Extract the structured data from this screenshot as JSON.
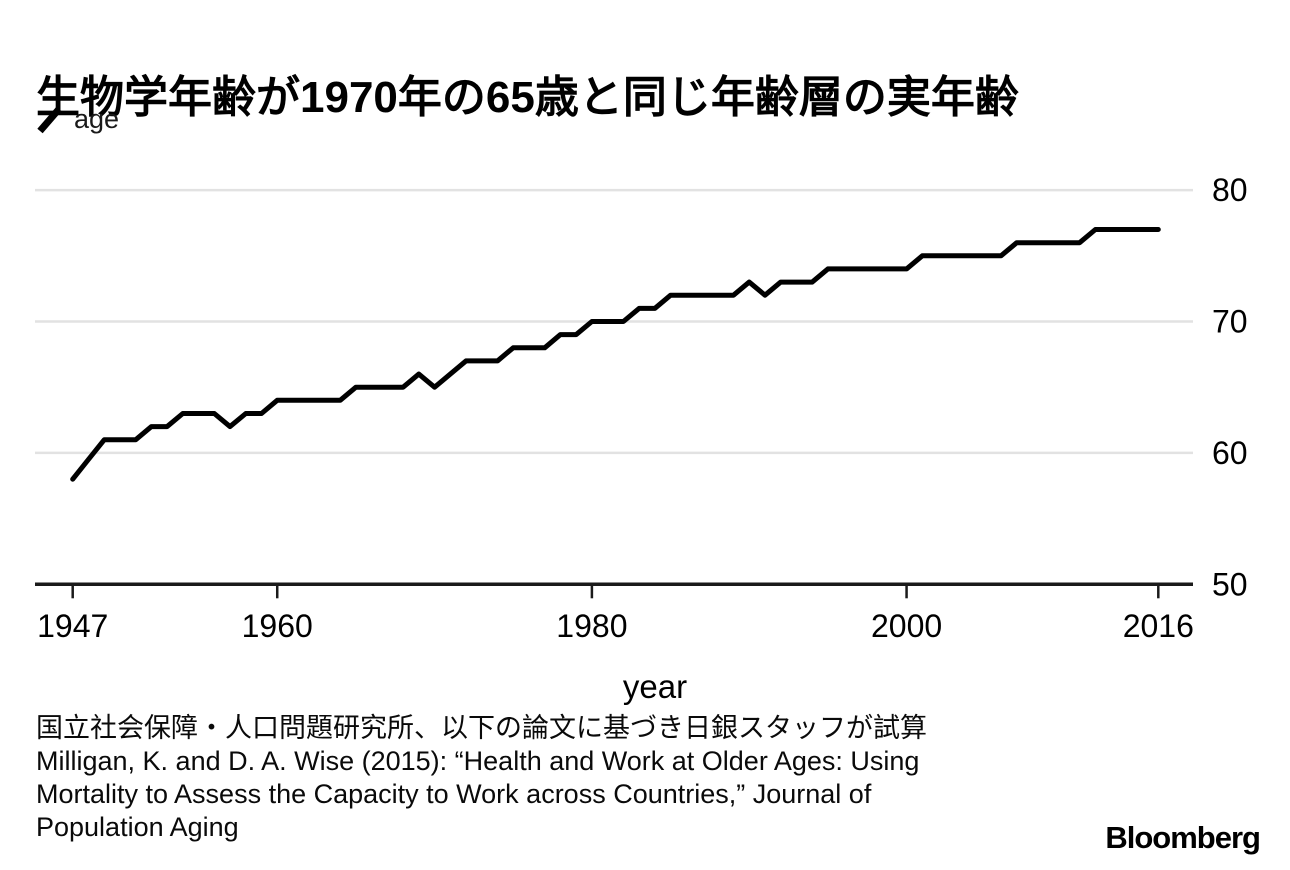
{
  "header": {
    "title": "生物学年齢が1970年の65歳と同じ年齢層の実年齢"
  },
  "legend": {
    "series_label": "age"
  },
  "source": {
    "lines": [
      "国立社会保障・人口問題研究所、以下の論文に基づき日銀スタッフが試算",
      "Milligan, K. and D. A. Wise (2015): “Health and Work at Older Ages: Using",
      "Mortality to Assess the Capacity to Work across Countries,” Journal of",
      "Population Aging"
    ]
  },
  "branding": {
    "logo_text": "Bloomberg"
  },
  "colors": {
    "line": "#000000",
    "grid": "#e2e2e2",
    "axis": "#1a1a1a",
    "text": "#000000"
  },
  "chart_data": {
    "type": "line",
    "title": "生物学年齢が1970年の65歳と同じ年齢層の実年齢",
    "series_name": "age",
    "xlabel": "year",
    "ylabel": "",
    "ylim": [
      50,
      80
    ],
    "x_ticks": [
      1947,
      1960,
      1980,
      2000,
      2016
    ],
    "y_ticks": [
      50,
      60,
      70,
      80
    ],
    "grid": "horizontal-only",
    "legend_position": "top-left",
    "y_axis_side": "right",
    "x": [
      1947,
      1948,
      1949,
      1950,
      1951,
      1952,
      1953,
      1954,
      1955,
      1956,
      1957,
      1958,
      1959,
      1960,
      1961,
      1962,
      1963,
      1964,
      1965,
      1966,
      1967,
      1968,
      1969,
      1970,
      1971,
      1972,
      1973,
      1974,
      1975,
      1976,
      1977,
      1978,
      1979,
      1980,
      1981,
      1982,
      1983,
      1984,
      1985,
      1986,
      1987,
      1988,
      1989,
      1990,
      1991,
      1992,
      1993,
      1994,
      1995,
      1996,
      1997,
      1998,
      1999,
      2000,
      2001,
      2002,
      2003,
      2004,
      2005,
      2006,
      2007,
      2008,
      2009,
      2010,
      2011,
      2012,
      2013,
      2014,
      2015,
      2016
    ],
    "values": [
      58,
      59.5,
      61,
      61,
      61,
      62,
      62,
      63,
      63,
      63,
      62,
      63,
      63,
      64,
      64,
      64,
      64,
      64,
      65,
      65,
      65,
      65,
      66,
      65,
      66,
      67,
      67,
      67,
      68,
      68,
      68,
      69,
      69,
      70,
      70,
      70,
      71,
      71,
      72,
      72,
      72,
      72,
      72,
      73,
      72,
      73,
      73,
      73,
      74,
      74,
      74,
      74,
      74,
      74,
      75,
      75,
      75,
      75,
      75,
      75,
      76,
      76,
      76,
      76,
      76,
      77,
      77,
      77,
      77,
      77
    ]
  }
}
